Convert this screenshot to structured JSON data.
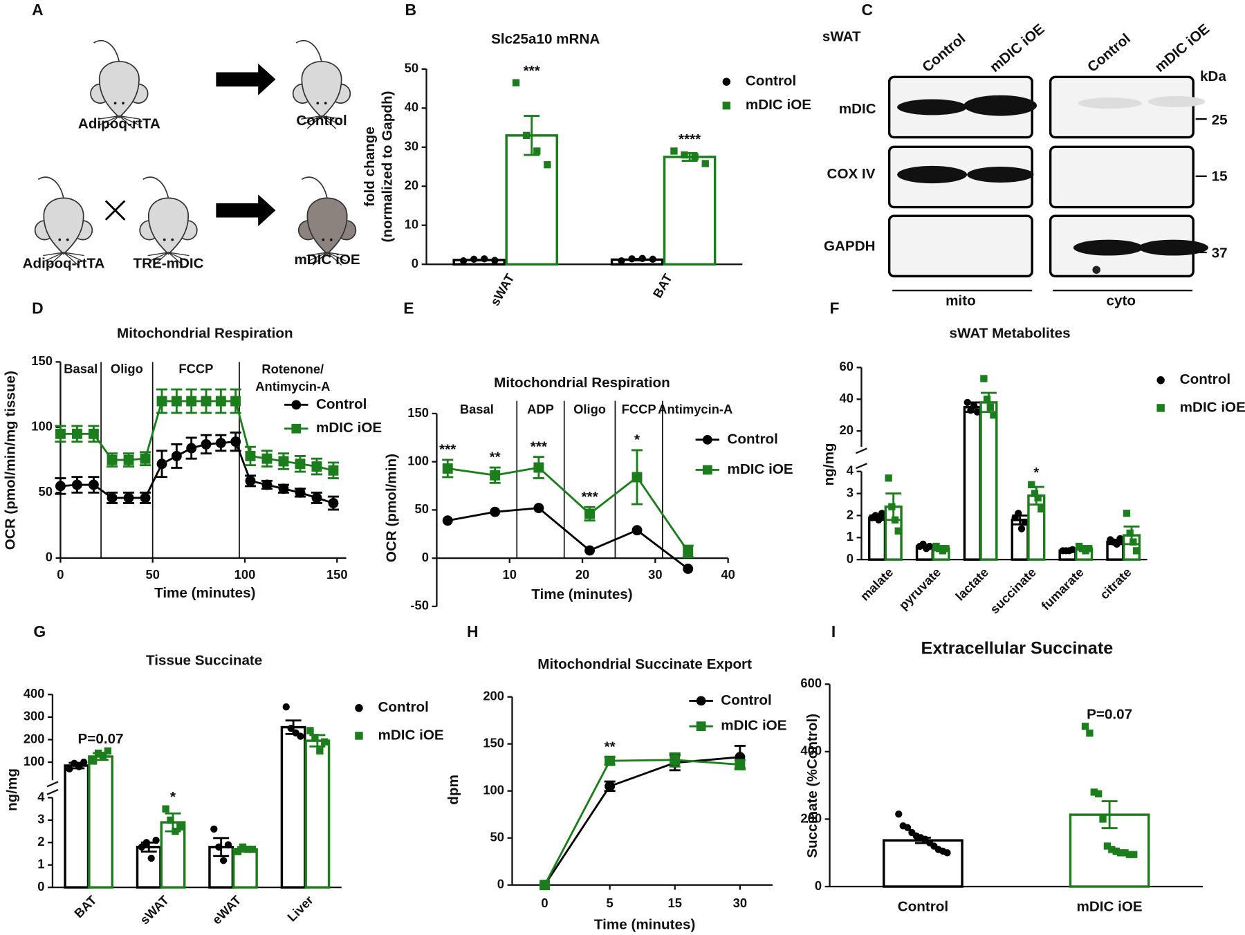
{
  "panel_a": {
    "letter": "A",
    "labels": [
      "Adipoq-rtTA",
      "Control",
      "Adipoq-rtTA",
      "TRE-mDIC",
      "mDIC iOE"
    ]
  },
  "panel_c": {
    "letter": "C",
    "tissue": "sWAT",
    "lanes": [
      "Control",
      "mDIC iOE",
      "Control",
      "mDIC iOE"
    ],
    "rows": [
      "mDIC",
      "COX IV",
      "GAPDH"
    ],
    "unit": "kDa",
    "sizes": [
      25,
      15,
      37
    ],
    "fractions": [
      "mito",
      "cyto"
    ]
  },
  "chart_data": [
    {
      "panel": "B",
      "type": "bar",
      "title": "Slc25a10 mRNA",
      "ylabel": [
        "fold change",
        "(normalized to Gapdh)"
      ],
      "categories": [
        "sWAT",
        "BAT"
      ],
      "ylim": [
        0,
        50
      ],
      "yticks": [
        0,
        10,
        20,
        30,
        40,
        50
      ],
      "legend": "right",
      "series": [
        {
          "name": "Control",
          "color": "#000000",
          "marker": "circle",
          "values": [
            1.1,
            1.2
          ],
          "errors": [
            0.1,
            0.15
          ],
          "points": [
            [
              0.9,
              1.3,
              1.4,
              1.0
            ],
            [
              0.9,
              1.4,
              1.5,
              1.3
            ]
          ]
        },
        {
          "name": "mDIC iOE",
          "color": "#1b7d1b",
          "marker": "square",
          "values": [
            33,
            27.5
          ],
          "errors": [
            5,
            1
          ],
          "points": [
            [
              46.5,
              33,
              29,
              25.5
            ],
            [
              29,
              28,
              27.5,
              25.8
            ]
          ],
          "significance": [
            "***",
            "****"
          ]
        }
      ]
    },
    {
      "panel": "D",
      "type": "line",
      "title": "Mitochondrial Respiration",
      "xlabel": "Time (minutes)",
      "ylabel": "OCR (pmol/min/mg tissue)",
      "x": [
        0,
        9,
        18,
        28,
        37,
        46,
        55,
        63,
        71,
        79,
        87,
        95,
        103,
        112,
        121,
        130,
        139,
        148
      ],
      "xlim": [
        0,
        155
      ],
      "xticks": [
        0,
        50,
        100,
        150
      ],
      "ylim": [
        0,
        150
      ],
      "yticks": [
        0,
        50,
        100,
        150
      ],
      "phases": [
        "Basal",
        "Oligo",
        "FCCP",
        [
          "Rotenone/",
          "Antimycin-A"
        ]
      ],
      "phase_bounds": [
        22,
        50,
        97
      ],
      "legend": "upper right",
      "series": [
        {
          "name": "Control",
          "color": "#000000",
          "marker": "circle",
          "values": [
            55,
            56,
            56,
            46,
            46,
            46,
            72,
            78,
            84,
            87,
            88,
            89,
            59,
            56,
            53,
            50,
            46,
            42
          ],
          "errors": [
            6,
            6,
            6,
            4,
            4,
            4,
            10,
            9,
            8,
            7,
            6,
            7,
            4,
            3,
            3,
            3,
            4,
            5
          ]
        },
        {
          "name": "mDIC iOE",
          "color": "#1b7d1b",
          "marker": "square",
          "values": [
            95,
            95,
            95,
            75,
            75,
            76,
            120,
            120,
            120,
            120,
            120,
            120,
            78,
            76,
            74,
            72,
            70,
            67
          ],
          "errors": [
            6,
            6,
            6,
            5,
            5,
            5,
            9,
            9,
            9,
            9,
            9,
            9,
            7,
            6,
            6,
            6,
            6,
            6
          ]
        }
      ]
    },
    {
      "panel": "E",
      "type": "line",
      "title": "Mitochondrial Respiration",
      "xlabel": "Time (minutes)",
      "ylabel": "OCR (pmol/min)",
      "x": [
        1.5,
        8,
        14,
        21,
        27.5,
        34.5
      ],
      "xlim": [
        0,
        40
      ],
      "xticks": [
        10,
        20,
        30,
        40
      ],
      "ylim": [
        -50,
        150
      ],
      "yticks": [
        -50,
        0,
        50,
        100,
        150
      ],
      "phases": [
        "Basal",
        "ADP",
        "Oligo",
        "FCCP",
        "Antimycin-A"
      ],
      "phase_bounds": [
        11,
        17.5,
        24.5,
        31
      ],
      "legend": "right",
      "series": [
        {
          "name": "Control",
          "color": "#000000",
          "marker": "circle",
          "values": [
            39,
            48,
            52,
            8,
            29,
            -11
          ]
        },
        {
          "name": "mDIC iOE",
          "color": "#1b7d1b",
          "marker": "square",
          "values": [
            93,
            86,
            94,
            46,
            84,
            7
          ],
          "errors": [
            9,
            8,
            11,
            7,
            28,
            6
          ],
          "significance": [
            "***",
            "**",
            "***",
            "***",
            "*",
            null
          ]
        }
      ]
    },
    {
      "panel": "F",
      "type": "bar",
      "title": "sWAT Metabolites",
      "ylabel": "ng/mg",
      "categories": [
        "malate",
        "pyruvate",
        "lactate",
        "succinate",
        "fumarate",
        "citrate"
      ],
      "ylim": [
        0,
        60
      ],
      "ybreak": [
        4,
        10
      ],
      "yticks": [
        0,
        1,
        2,
        3,
        4,
        20,
        40,
        60
      ],
      "legend": "right",
      "series": [
        {
          "name": "Control",
          "color": "#000000",
          "marker": "circle",
          "values": [
            1.9,
            0.6,
            35,
            1.8,
            0.4,
            0.8
          ],
          "errors": [
            0.1,
            0.05,
            3,
            0.2,
            0.02,
            0.1
          ],
          "points": [
            [
              1.9,
              2.0,
              1.8,
              2.1
            ],
            [
              0.6,
              0.7,
              0.5,
              0.6
            ],
            [
              38,
              33,
              36,
              32
            ],
            [
              1.9,
              2.1,
              1.4,
              1.7
            ],
            [
              0.4,
              0.4,
              0.4,
              0.45
            ],
            [
              0.9,
              0.8,
              0.7,
              0.95
            ]
          ]
        },
        {
          "name": "mDIC iOE",
          "color": "#1b7d1b",
          "marker": "square",
          "values": [
            2.4,
            0.5,
            38,
            2.9,
            0.5,
            1.1
          ],
          "errors": [
            0.6,
            0.08,
            6,
            0.4,
            0.06,
            0.4
          ],
          "points": [
            [
              3.7,
              2.4,
              1.8,
              1.3
            ],
            [
              0.6,
              0.5,
              0.4,
              0.5
            ],
            [
              53,
              40,
              35,
              30
            ],
            [
              3.4,
              3.0,
              2.8,
              2.3
            ],
            [
              0.6,
              0.5,
              0.4,
              0.5
            ],
            [
              2.1,
              1.2,
              0.8,
              0.4
            ]
          ],
          "significance": [
            null,
            null,
            null,
            "*",
            null,
            null
          ]
        }
      ]
    },
    {
      "panel": "G",
      "type": "bar",
      "title": "Tissue Succinate",
      "ylabel": "ng/mg",
      "categories": [
        "BAT",
        "sWAT",
        "eWAT",
        "Liver"
      ],
      "ylim": [
        0,
        400
      ],
      "ybreak": [
        4,
        20
      ],
      "yticks": [
        0,
        1,
        2,
        3,
        4,
        100,
        200,
        300,
        400
      ],
      "legend": "right",
      "series": [
        {
          "name": "Control",
          "color": "#000000",
          "marker": "circle",
          "values": [
            85,
            1.8,
            1.8,
            255
          ],
          "errors": [
            12,
            0.2,
            0.4,
            30
          ],
          "points": [
            [
              70,
              95,
              80,
              100
            ],
            [
              1.8,
              2.0,
              1.3,
              2.1
            ],
            [
              2.6,
              1.8,
              1.2,
              1.9
            ],
            [
              345,
              250,
              230,
              215
            ]
          ]
        },
        {
          "name": "mDIC iOE",
          "color": "#1b7d1b",
          "marker": "square",
          "values": [
            125,
            2.9,
            1.7,
            195
          ],
          "errors": [
            15,
            0.4,
            0.1,
            25
          ],
          "points": [
            [
              105,
              140,
              130,
              150
            ],
            [
              3.5,
              3.0,
              2.5,
              2.7
            ],
            [
              1.6,
              1.8,
              1.7,
              1.7
            ],
            [
              240,
              210,
              150,
              190
            ]
          ],
          "significance": [
            "P=0.07",
            "*",
            null,
            null
          ]
        }
      ]
    },
    {
      "panel": "H",
      "type": "line",
      "title": "Mitochondrial Succinate Export",
      "xlabel": "Time (minutes)",
      "ylabel": "dpm",
      "categories": [
        "0",
        "5",
        "15",
        "30"
      ],
      "ylim": [
        0,
        200
      ],
      "yticks": [
        0,
        50,
        100,
        150,
        200
      ],
      "legend": "upper right",
      "series": [
        {
          "name": "Control",
          "color": "#000000",
          "marker": "circle",
          "values": [
            0,
            105,
            130,
            136
          ],
          "errors": [
            0,
            5,
            8,
            12
          ]
        },
        {
          "name": "mDIC iOE",
          "color": "#1b7d1b",
          "marker": "square",
          "values": [
            0,
            132,
            133,
            128
          ],
          "errors": [
            0,
            4,
            7,
            5
          ],
          "significance": [
            null,
            "**",
            null,
            null
          ]
        }
      ]
    },
    {
      "panel": "I",
      "type": "bar",
      "title": "Extracellular Succinate",
      "ylabel": "Succinate (%Control)",
      "categories": [
        "Control",
        "mDIC iOE"
      ],
      "ylim": [
        0,
        600
      ],
      "yticks": [
        0,
        200,
        400,
        600
      ],
      "values": [
        137,
        213
      ],
      "errors": [
        8,
        40
      ],
      "colors": [
        "#000000",
        "#1b7d1b"
      ],
      "markers": [
        "circle",
        "square"
      ],
      "points": [
        [
          215,
          180,
          175,
          160,
          150,
          145,
          140,
          130,
          120,
          110,
          105,
          100
        ],
        [
          475,
          455,
          280,
          275,
          200,
          120,
          110,
          105,
          100,
          100,
          95,
          95
        ]
      ],
      "significance": [
        null,
        "P=0.07"
      ]
    }
  ]
}
